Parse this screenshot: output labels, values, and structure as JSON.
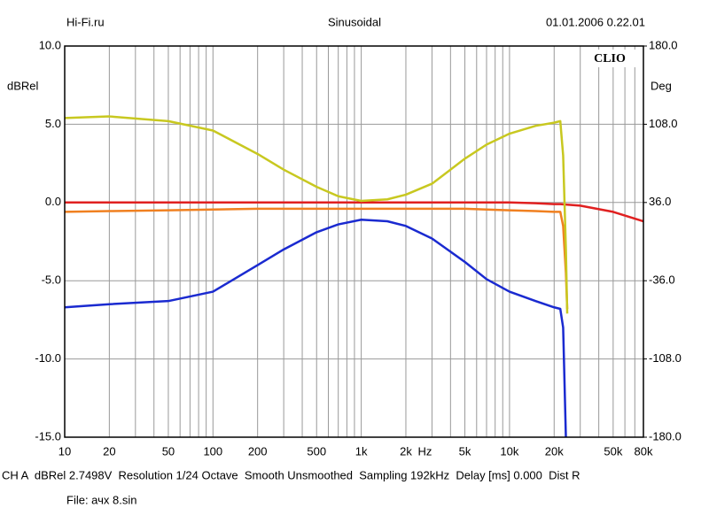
{
  "chart_data": {
    "type": "line",
    "header_left": "Hi-Fi.ru",
    "title": "Sinusoidal",
    "header_right": "01.01.2006 0.22.01",
    "logo": "CLIO",
    "y_label": "dBRel",
    "y2_label": "Deg",
    "x_label": "Hz",
    "log_x": true,
    "grid": true,
    "xlim": [
      10,
      80000
    ],
    "ylim": [
      -15,
      10
    ],
    "y2lim": [
      -180,
      180
    ],
    "xticks": [
      10,
      20,
      50,
      100,
      200,
      500,
      {
        "value": 1000,
        "label": "1k"
      },
      {
        "value": 2000,
        "label": "2k"
      },
      {
        "value": 5000,
        "label": "5k"
      },
      {
        "value": 10000,
        "label": "10k"
      },
      {
        "value": 20000,
        "label": "20k"
      },
      {
        "value": 50000,
        "label": "50k"
      },
      {
        "value": 80000,
        "label": "80k"
      }
    ],
    "x_minor_ticks": [
      30,
      40,
      60,
      70,
      80,
      90,
      300,
      400,
      600,
      700,
      800,
      900,
      3000,
      4000,
      6000,
      7000,
      8000,
      9000,
      30000,
      40000,
      60000,
      70000
    ],
    "yticks": [
      {
        "value": 10,
        "label": "10.0"
      },
      {
        "value": 5,
        "label": "5.0"
      },
      {
        "value": 0,
        "label": "0.0"
      },
      {
        "value": -5,
        "label": "-5.0"
      },
      {
        "value": -10,
        "label": "-10.0"
      },
      {
        "value": -15,
        "label": "-15.0"
      }
    ],
    "y2ticks": [
      {
        "value": 180,
        "label": "180.0"
      },
      {
        "value": 108,
        "label": "108.0"
      },
      {
        "value": 36,
        "label": "36.0"
      },
      {
        "value": -36,
        "label": "-36.0"
      },
      {
        "value": -108,
        "label": "-108.0"
      },
      {
        "value": -180,
        "label": "-180.0"
      }
    ],
    "x": [
      10,
      20,
      50,
      100,
      200,
      300,
      500,
      700,
      1000,
      1500,
      2000,
      3000,
      5000,
      7000,
      10000,
      15000,
      20000,
      22000,
      23000,
      24000,
      24500,
      30000,
      50000,
      80000
    ],
    "series": [
      {
        "color": "#e02020",
        "values": [
          0,
          0,
          0,
          0,
          0,
          0,
          0,
          0,
          0,
          0,
          0,
          0,
          0,
          0,
          0,
          -0.05,
          -0.1,
          -0.1,
          -0.12,
          -0.13,
          -0.14,
          -0.2,
          -0.6,
          -1.2
        ]
      },
      {
        "color": "#f08020",
        "values": [
          -0.6,
          -0.55,
          -0.5,
          -0.45,
          -0.4,
          -0.4,
          -0.4,
          -0.4,
          -0.4,
          -0.4,
          -0.4,
          -0.4,
          -0.4,
          -0.45,
          -0.5,
          -0.55,
          -0.6,
          -0.6,
          -1.5,
          -4.5,
          -6.8,
          null,
          null,
          null
        ]
      },
      {
        "color": "#c8c820",
        "values": [
          5.4,
          5.5,
          5.2,
          4.6,
          3.1,
          2.1,
          1.0,
          0.4,
          0.1,
          0.2,
          0.5,
          1.2,
          2.8,
          3.7,
          4.4,
          4.9,
          5.1,
          5.2,
          3.0,
          -3,
          -7.1,
          null,
          null,
          null
        ]
      },
      {
        "color": "#1a2ad0",
        "values": [
          -6.7,
          -6.5,
          -6.3,
          -5.7,
          -4.0,
          -3.0,
          -1.9,
          -1.4,
          -1.1,
          -1.2,
          -1.5,
          -2.3,
          -3.8,
          -4.9,
          -5.7,
          -6.3,
          -6.7,
          -6.8,
          -8.0,
          -15,
          null,
          null,
          null,
          null
        ]
      }
    ],
    "footer": "CH A  dBRel 2.7498V  Resolution 1/24 Octave  Smooth Unsmoothed  Sampling 192kHz  Delay [ms] 0.000  Dist R",
    "file": "File: ачх 8.sin"
  }
}
